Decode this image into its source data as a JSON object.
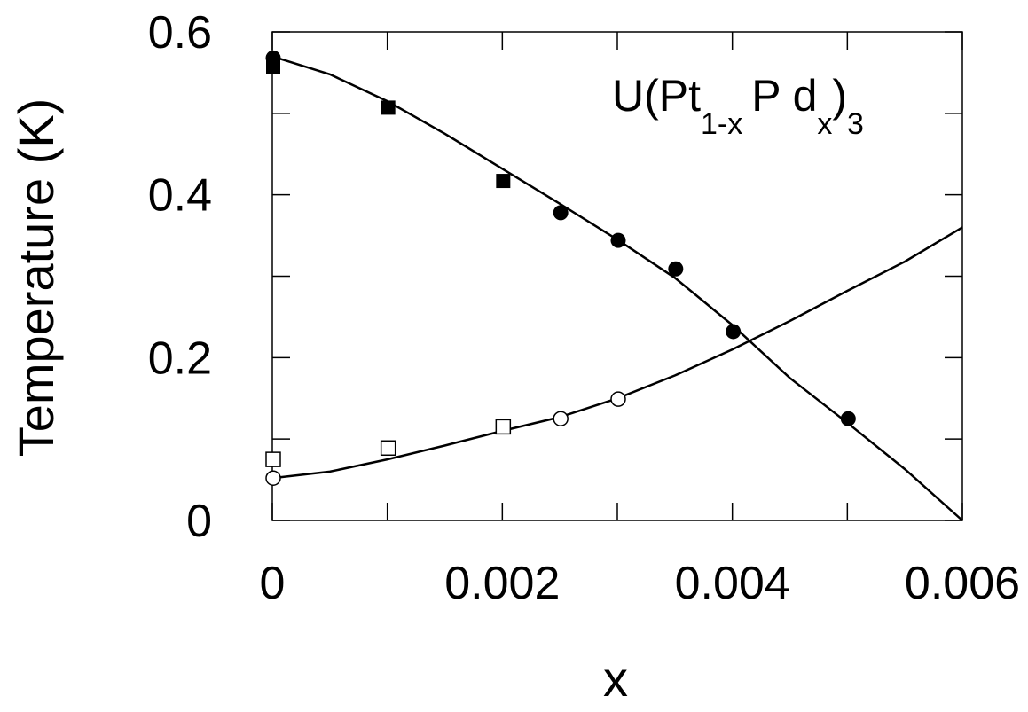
{
  "chart_data": {
    "type": "scatter",
    "xlabel": "x",
    "ylabel": "Temperature (K)",
    "xlim": [
      0,
      0.006
    ],
    "ylim": [
      0,
      0.6
    ],
    "x_ticks": [
      0,
      0.002,
      0.004,
      0.006
    ],
    "x_tick_labels": [
      "0",
      "0.002",
      "0.004",
      "0.006"
    ],
    "y_ticks": [
      0,
      0.2,
      0.4,
      0.6
    ],
    "y_tick_labels": [
      "0",
      "0.2",
      "0.4",
      "0.6"
    ],
    "grid": false,
    "annotation": {
      "parts": [
        "U(Pt",
        "1-x",
        "P d",
        "x",
        ")",
        "3"
      ]
    },
    "series": [
      {
        "marker": "filled-circle",
        "points": [
          [
            0.0,
            0.568
          ],
          [
            0.0025,
            0.378
          ],
          [
            0.003,
            0.344
          ],
          [
            0.0035,
            0.309
          ],
          [
            0.004,
            0.232
          ],
          [
            0.005,
            0.125
          ]
        ]
      },
      {
        "marker": "filled-square",
        "points": [
          [
            0.0,
            0.557
          ],
          [
            0.001,
            0.507
          ],
          [
            0.002,
            0.417
          ]
        ]
      },
      {
        "marker": "open-circle",
        "points": [
          [
            0.0,
            0.052
          ],
          [
            0.0025,
            0.125
          ],
          [
            0.003,
            0.149
          ]
        ]
      },
      {
        "marker": "open-square",
        "points": [
          [
            0.0,
            0.075
          ],
          [
            0.001,
            0.089
          ],
          [
            0.002,
            0.115
          ]
        ]
      }
    ],
    "curves": [
      {
        "style": "solid",
        "points": [
          [
            0.0,
            0.57
          ],
          [
            0.0005,
            0.548
          ],
          [
            0.001,
            0.515
          ],
          [
            0.0015,
            0.475
          ],
          [
            0.002,
            0.432
          ],
          [
            0.0025,
            0.389
          ],
          [
            0.003,
            0.345
          ],
          [
            0.0035,
            0.298
          ],
          [
            0.004,
            0.24
          ],
          [
            0.0045,
            0.175
          ],
          [
            0.005,
            0.12
          ],
          [
            0.0055,
            0.063
          ],
          [
            0.006,
            0.0
          ]
        ]
      },
      {
        "style": "solid",
        "points": [
          [
            0.0,
            0.052
          ],
          [
            0.0005,
            0.06
          ],
          [
            0.001,
            0.075
          ],
          [
            0.0015,
            0.092
          ],
          [
            0.002,
            0.11
          ],
          [
            0.0025,
            0.127
          ],
          [
            0.003,
            0.15
          ],
          [
            0.0035,
            0.178
          ],
          [
            0.004,
            0.21
          ],
          [
            0.0045,
            0.245
          ],
          [
            0.005,
            0.282
          ],
          [
            0.0055,
            0.318
          ],
          [
            0.006,
            0.36
          ]
        ]
      }
    ]
  }
}
